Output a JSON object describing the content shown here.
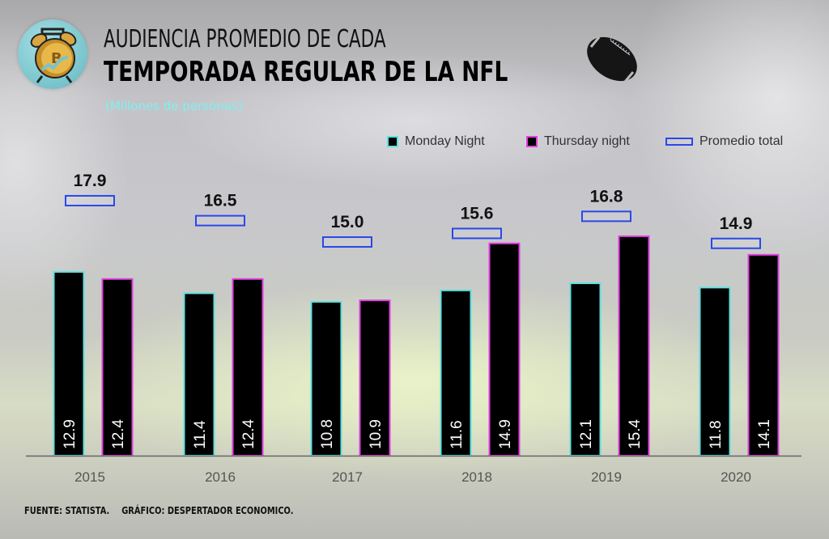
{
  "header": {
    "title_line1": "AUDIENCIA PROMEDIO DE CADA",
    "title_line2": "TEMPORADA REGULAR DE LA NFL",
    "subtitle": "(Millones de personas)",
    "logo_icon": "alarm-clock-bitcoin-icon",
    "decor_icon": "football-icon"
  },
  "legend": {
    "items": [
      {
        "label": "Monday Night",
        "swatch": "monday"
      },
      {
        "label": "Thursday night",
        "swatch": "thursday"
      },
      {
        "label": "Promedio total",
        "swatch": "avg"
      }
    ]
  },
  "colors": {
    "bar_fill": "#000000",
    "monday_border": "#5ee0e0",
    "thursday_border": "#e040e0",
    "avg_border": "#2a48e8",
    "subtitle": "#7ff0f0",
    "axis": "#666666",
    "tick_label": "#555555"
  },
  "footer": {
    "source": "FUENTE: STATISTA.",
    "credit": "GRÁFICO: DESPERTADOR ECONOMICO."
  },
  "chart_data": {
    "type": "bar",
    "title": "AUDIENCIA PROMEDIO DE CADA TEMPORADA REGULAR DE LA NFL",
    "subtitle": "(Millones de personas)",
    "xlabel": "",
    "ylabel": "Millones de personas",
    "categories": [
      "2015",
      "2016",
      "2017",
      "2018",
      "2019",
      "2020"
    ],
    "series": [
      {
        "name": "Monday Night",
        "values": [
          12.9,
          11.4,
          10.8,
          11.6,
          12.1,
          11.8
        ],
        "kind": "bar"
      },
      {
        "name": "Thursday night",
        "values": [
          12.4,
          12.4,
          10.9,
          14.9,
          15.4,
          14.1
        ],
        "kind": "bar"
      },
      {
        "name": "Promedio total",
        "values": [
          17.9,
          16.5,
          15.0,
          15.6,
          16.8,
          14.9
        ],
        "kind": "marker"
      }
    ],
    "ylim": [
      0,
      20
    ],
    "grid": false,
    "legend_position": "top-right",
    "show_y_axis": false,
    "data_labels": true
  }
}
